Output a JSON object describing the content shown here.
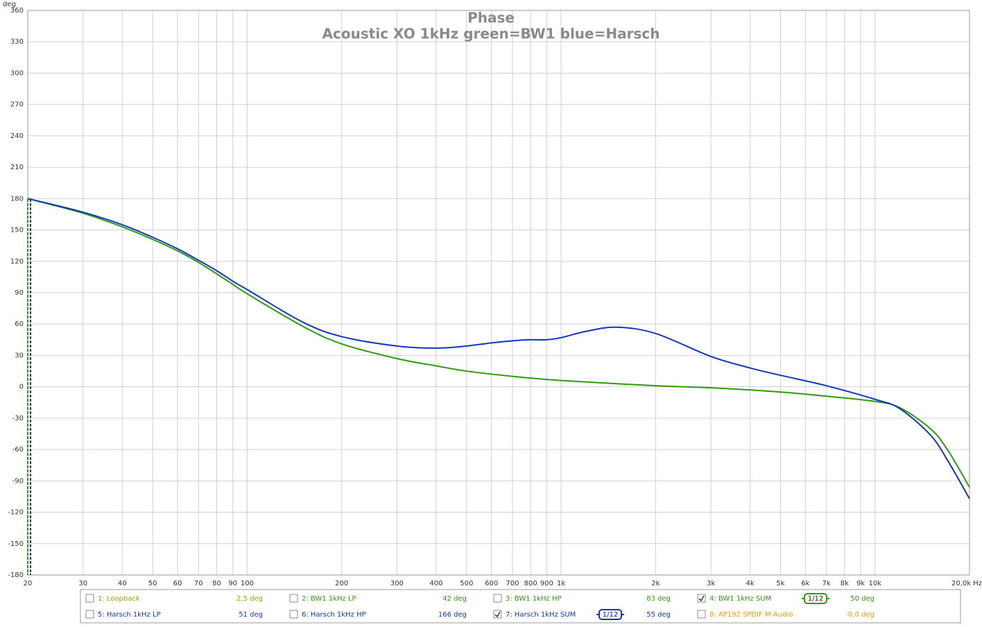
{
  "chart_data": {
    "type": "line",
    "title": "Phase",
    "subtitle": "Acoustic XO 1kHz green=BW1 blue=Harsch",
    "y_label": "deg",
    "xscale": "log",
    "grid": true,
    "xlim": [
      20,
      20000
    ],
    "ylim": [
      -180,
      360
    ],
    "xticks": [
      20,
      30,
      40,
      50,
      60,
      70,
      80,
      90,
      100,
      200,
      300,
      400,
      500,
      600,
      700,
      800,
      900,
      {
        "value": 1000,
        "label": "1k"
      },
      {
        "value": 2000,
        "label": "2k"
      },
      {
        "value": 3000,
        "label": "3k"
      },
      {
        "value": 4000,
        "label": "4k"
      },
      {
        "value": 5000,
        "label": "5k"
      },
      {
        "value": 6000,
        "label": "6k"
      },
      {
        "value": 7000,
        "label": "7k"
      },
      {
        "value": 8000,
        "label": "8k"
      },
      {
        "value": 9000,
        "label": "9k"
      },
      {
        "value": 10000,
        "label": "10k"
      },
      {
        "value": 20000,
        "label": "20,0k Hz"
      }
    ],
    "yticks": [
      -180,
      -150,
      -120,
      -90,
      -60,
      -30,
      0,
      30,
      60,
      90,
      120,
      150,
      180,
      210,
      240,
      270,
      300,
      330,
      360
    ],
    "series": [
      {
        "name": "4: BW1 1kHz SUM",
        "color": "#2e9a0a",
        "checked": true,
        "smoothing": "1/12",
        "reading": "50 deg",
        "x": [
          20,
          30,
          40,
          50,
          60,
          70,
          80,
          90,
          100,
          150,
          200,
          300,
          400,
          500,
          700,
          1000,
          2000,
          3000,
          5000,
          7000,
          10000,
          12000,
          15000,
          17000,
          20000
        ],
        "values": [
          180,
          166,
          153,
          141,
          130,
          119,
          108,
          98,
          89,
          58,
          41,
          27,
          20,
          15,
          10,
          6,
          1,
          -1,
          -5,
          -9,
          -14,
          -20,
          -40,
          -60,
          -96
        ]
      },
      {
        "name": "7: Harsch 1kHz SUM",
        "color": "#1035c0",
        "checked": true,
        "smoothing": "1/12",
        "reading": "55 deg",
        "x": [
          20,
          30,
          40,
          50,
          60,
          70,
          80,
          90,
          100,
          150,
          200,
          300,
          400,
          500,
          600,
          700,
          800,
          900,
          1000,
          1200,
          1500,
          2000,
          3000,
          4000,
          5000,
          7000,
          10000,
          12000,
          15000,
          17000,
          20000
        ],
        "values": [
          180,
          167,
          155,
          143,
          132,
          121,
          111,
          101,
          93,
          62,
          48,
          39,
          37,
          39,
          42,
          44,
          45,
          45,
          47,
          53,
          57,
          51,
          29,
          18,
          11,
          1,
          -12,
          -21,
          -46,
          -70,
          -107
        ]
      }
    ],
    "other_traces": [
      {
        "name": "1: Loopback",
        "color": "#a0a000",
        "checked": false,
        "reading": "2,5 deg"
      },
      {
        "name": "2: BW1 1kHz LP",
        "color": "#2e9a0a",
        "checked": false,
        "reading": "42 deg"
      },
      {
        "name": "3: BW1 1kHz HP",
        "color": "#2e9a0a",
        "checked": false,
        "reading": "83 deg"
      },
      {
        "name": "5: Harsch 1kHz LP",
        "color": "#1035c0",
        "checked": false,
        "reading": "51 deg"
      },
      {
        "name": "6: Harsch 1kHz HP",
        "color": "#1035c0",
        "checked": false,
        "reading": "166 deg"
      },
      {
        "name": "8: AP192 SPDIF M-Audio",
        "color": "#e89a00",
        "checked": false,
        "reading": "-0,0 deg"
      }
    ]
  }
}
